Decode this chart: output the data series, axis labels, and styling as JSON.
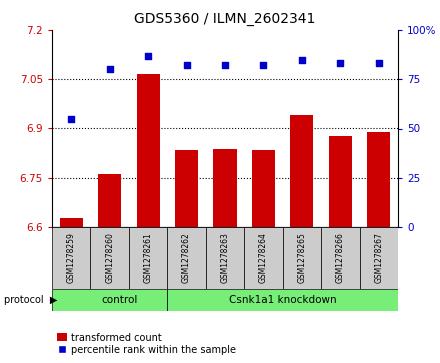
{
  "title": "GDS5360 / ILMN_2602341",
  "samples": [
    "GSM1278259",
    "GSM1278260",
    "GSM1278261",
    "GSM1278262",
    "GSM1278263",
    "GSM1278264",
    "GSM1278265",
    "GSM1278266",
    "GSM1278267"
  ],
  "bar_values": [
    6.627,
    6.762,
    7.067,
    6.833,
    6.838,
    6.835,
    6.942,
    6.878,
    6.89
  ],
  "dot_values": [
    55,
    80,
    87,
    82,
    82,
    82,
    85,
    83,
    83
  ],
  "ylim_left": [
    6.6,
    7.2
  ],
  "ylim_right": [
    0,
    100
  ],
  "yticks_left": [
    6.6,
    6.75,
    6.9,
    7.05,
    7.2
  ],
  "yticks_right": [
    0,
    25,
    50,
    75,
    100
  ],
  "ytick_labels_left": [
    "6.6",
    "6.75",
    "6.9",
    "7.05",
    "7.2"
  ],
  "ytick_labels_right": [
    "0",
    "25",
    "50",
    "75",
    "100%"
  ],
  "bar_color": "#cc0000",
  "dot_color": "#0000cc",
  "bar_width": 0.6,
  "control_samples": 3,
  "group_labels": [
    "control",
    "Csnk1a1 knockdown"
  ],
  "group_color": "#77ee77",
  "legend_bar_label": "transformed count",
  "legend_dot_label": "percentile rank within the sample",
  "tick_color_left": "#cc0000",
  "tick_color_right": "#0000cc",
  "background_sample_label": "#cccccc",
  "title_fontsize": 10
}
